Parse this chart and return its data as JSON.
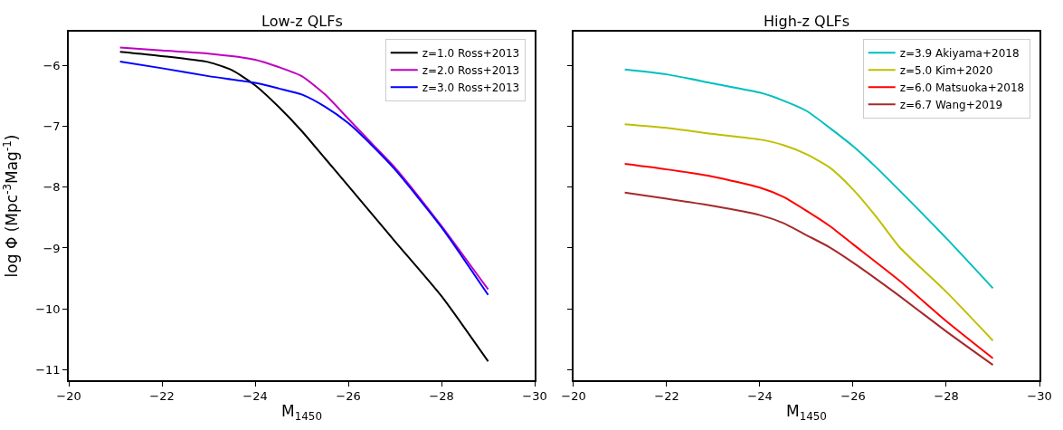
{
  "chart_data": [
    {
      "type": "line",
      "title": "Low-z QLFs",
      "xlabel": "M$_{1450}$",
      "ylabel": "log Φ (Mpc$^{-3}$Mag$^{-1}$)",
      "x": [
        -21.1,
        -22,
        -23,
        -24,
        -24.5,
        -25,
        -25.5,
        -26,
        -26.5,
        -27,
        -28,
        -29
      ],
      "xlim": [
        -20,
        -30
      ],
      "xticks": [
        -20,
        -22,
        -24,
        -26,
        -28,
        -30
      ],
      "ylim": [
        -11.17,
        -5.45
      ],
      "yticks": [
        -6,
        -7,
        -8,
        -9,
        -10,
        -11
      ],
      "legend": "top right",
      "line_style": "solid",
      "series": [
        {
          "name": "z=1.0 Ross+2013",
          "color": "#000000",
          "x": [
            -21.1,
            -22,
            -23,
            -23.5,
            -24,
            -24.5,
            -25,
            -25.5,
            -26,
            -27,
            -28,
            -29
          ],
          "values": [
            -5.78,
            -5.85,
            -5.95,
            -6.08,
            -6.33,
            -6.68,
            -7.08,
            -7.53,
            -7.98,
            -8.89,
            -9.79,
            -10.86
          ]
        },
        {
          "name": "z=2.0 Ross+2013",
          "color": "#bf00bf",
          "values": [
            -5.71,
            -5.76,
            -5.81,
            -5.91,
            -6.03,
            -6.18,
            -6.48,
            -6.88,
            -7.28,
            -7.68,
            -8.64,
            -9.68
          ]
        },
        {
          "name": "z=3.0 Ross+2013",
          "color": "#0000ff",
          "values": [
            -5.94,
            -6.05,
            -6.18,
            -6.29,
            -6.38,
            -6.48,
            -6.68,
            -6.95,
            -7.31,
            -7.71,
            -8.66,
            -9.77
          ]
        }
      ]
    },
    {
      "type": "line",
      "title": "High-z QLFs",
      "xlabel": "M$_{1450}$",
      "x": [
        -21.1,
        -22,
        -23,
        -24,
        -24.5,
        -25,
        -25.5,
        -26,
        -26.5,
        -27,
        -28,
        -29
      ],
      "xlim": [
        -20,
        -30
      ],
      "xticks": [
        -20,
        -22,
        -24,
        -26,
        -28,
        -30
      ],
      "ylim": [
        -11.17,
        -5.45
      ],
      "yticks": [
        -6,
        -7,
        -8,
        -9,
        -10,
        -11
      ],
      "tick_labels": "x",
      "legend": "top right",
      "line_style": "solid",
      "series": [
        {
          "name": "z=3.9 Akiyama+2018",
          "color": "#00bfbf",
          "values": [
            -6.07,
            -6.15,
            -6.3,
            -6.45,
            -6.58,
            -6.75,
            -7.03,
            -7.33,
            -7.68,
            -8.06,
            -8.84,
            -9.66
          ]
        },
        {
          "name": "z=5.0 Kim+2020",
          "color": "#bfbf00",
          "values": [
            -6.97,
            -7.03,
            -7.13,
            -7.22,
            -7.31,
            -7.46,
            -7.68,
            -8.04,
            -8.49,
            -8.99,
            -9.72,
            -10.52
          ]
        },
        {
          "name": "z=6.0 Matsuoka+2018",
          "color": "#ff0000",
          "x": [
            -21.1,
            -22,
            -23,
            -24,
            -24.5,
            -25,
            -25.5,
            -26,
            -27,
            -28,
            -29
          ],
          "values": [
            -7.62,
            -7.71,
            -7.83,
            -8.01,
            -8.16,
            -8.39,
            -8.64,
            -8.94,
            -9.54,
            -10.2,
            -10.81
          ]
        },
        {
          "name": "z=6.7 Wang+2019",
          "color": "#a52a2a",
          "x": [
            -21.1,
            -22,
            -23,
            -24,
            -24.5,
            -25,
            -25.5,
            -26,
            -27,
            -28,
            -29
          ],
          "values": [
            -8.09,
            -8.19,
            -8.31,
            -8.46,
            -8.59,
            -8.79,
            -8.99,
            -9.24,
            -9.79,
            -10.37,
            -10.92
          ]
        }
      ]
    }
  ]
}
